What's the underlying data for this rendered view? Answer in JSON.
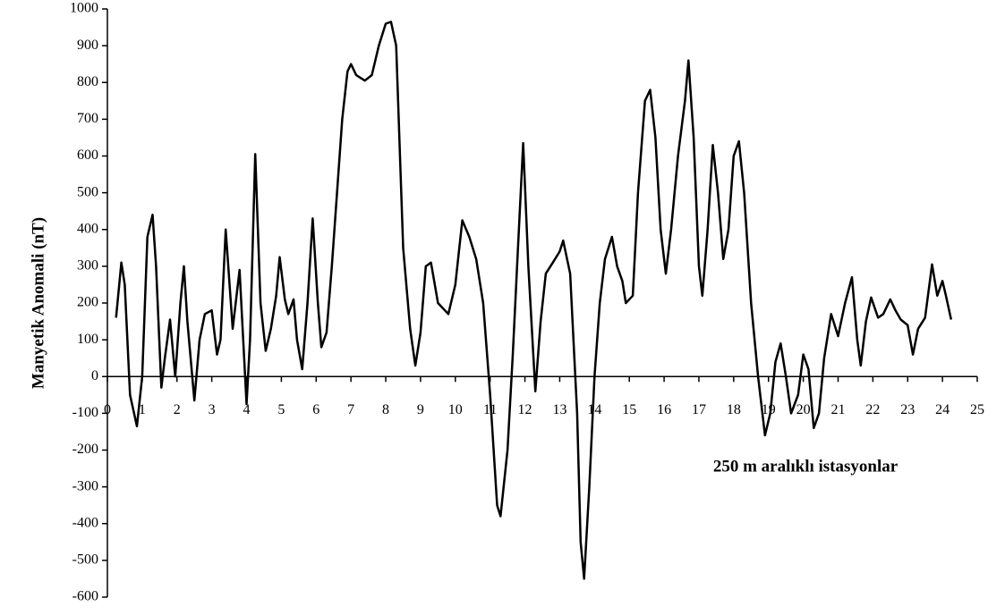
{
  "chart_data": {
    "type": "line",
    "y_label": "Manyetik Anomali (nT)",
    "annotation": "250 m aralıklı istasyonlar",
    "color": "#000000",
    "xlim": [
      0,
      25
    ],
    "xticks": [
      0,
      1,
      2,
      3,
      4,
      5,
      6,
      7,
      8,
      9,
      10,
      11,
      12,
      13,
      14,
      15,
      16,
      17,
      18,
      19,
      20,
      21,
      22,
      23,
      24,
      25
    ],
    "ylim": [
      -600,
      1000
    ],
    "yticks": [
      -600,
      -500,
      -400,
      -300,
      -200,
      -100,
      0,
      100,
      200,
      300,
      400,
      500,
      600,
      700,
      800,
      900,
      1000
    ],
    "x": [
      0.25,
      0.4,
      0.5,
      0.65,
      0.85,
      1.0,
      1.15,
      1.3,
      1.4,
      1.55,
      1.65,
      1.8,
      1.95,
      2.1,
      2.2,
      2.3,
      2.5,
      2.65,
      2.8,
      3.0,
      3.15,
      3.25,
      3.4,
      3.6,
      3.8,
      4.0,
      4.1,
      4.25,
      4.4,
      4.55,
      4.7,
      4.85,
      4.95,
      5.1,
      5.2,
      5.35,
      5.45,
      5.6,
      5.75,
      5.9,
      6.05,
      6.15,
      6.3,
      6.45,
      6.6,
      6.75,
      6.9,
      7.0,
      7.15,
      7.4,
      7.6,
      7.8,
      8.0,
      8.15,
      8.3,
      8.5,
      8.7,
      8.85,
      9.0,
      9.15,
      9.3,
      9.5,
      9.8,
      10.0,
      10.2,
      10.4,
      10.6,
      10.8,
      11.0,
      11.2,
      11.3,
      11.5,
      11.65,
      11.8,
      11.95,
      12.1,
      12.3,
      12.45,
      12.6,
      12.8,
      13.0,
      13.1,
      13.3,
      13.5,
      13.6,
      13.7,
      13.85,
      14.0,
      14.15,
      14.3,
      14.5,
      14.65,
      14.8,
      14.9,
      15.1,
      15.25,
      15.45,
      15.6,
      15.75,
      15.9,
      16.05,
      16.2,
      16.4,
      16.6,
      16.7,
      16.85,
      17.0,
      17.1,
      17.25,
      17.4,
      17.55,
      17.7,
      17.85,
      18.0,
      18.15,
      18.3,
      18.5,
      18.7,
      18.9,
      19.05,
      19.2,
      19.35,
      19.5,
      19.65,
      19.85,
      20.0,
      20.15,
      20.3,
      20.45,
      20.6,
      20.8,
      21.0,
      21.2,
      21.4,
      21.55,
      21.65,
      21.8,
      21.95,
      22.15,
      22.3,
      22.5,
      22.65,
      22.8,
      23.0,
      23.15,
      23.3,
      23.5,
      23.7,
      23.85,
      24.0,
      24.1,
      24.25
    ],
    "values": [
      160,
      310,
      250,
      -50,
      -135,
      0,
      380,
      440,
      300,
      -30,
      50,
      155,
      0,
      200,
      300,
      150,
      -65,
      100,
      170,
      180,
      60,
      100,
      400,
      130,
      290,
      -75,
      100,
      605,
      200,
      70,
      130,
      220,
      325,
      210,
      170,
      210,
      100,
      20,
      200,
      430,
      200,
      80,
      120,
      300,
      500,
      700,
      830,
      850,
      820,
      805,
      820,
      900,
      960,
      965,
      900,
      350,
      130,
      30,
      120,
      300,
      310,
      200,
      170,
      250,
      425,
      380,
      320,
      200,
      -50,
      -350,
      -380,
      -200,
      60,
      350,
      635,
      300,
      -40,
      150,
      280,
      310,
      340,
      370,
      280,
      -100,
      -450,
      -550,
      -300,
      0,
      200,
      320,
      380,
      300,
      260,
      200,
      220,
      500,
      750,
      780,
      650,
      400,
      280,
      400,
      600,
      750,
      860,
      650,
      300,
      220,
      400,
      630,
      500,
      320,
      400,
      600,
      640,
      500,
      200,
      0,
      -160,
      -100,
      40,
      90,
      0,
      -100,
      -50,
      60,
      20,
      -140,
      -100,
      50,
      170,
      110,
      200,
      270,
      100,
      30,
      150,
      215,
      160,
      170,
      210,
      180,
      155,
      140,
      60,
      130,
      160,
      305,
      220,
      260,
      220,
      155
    ]
  }
}
